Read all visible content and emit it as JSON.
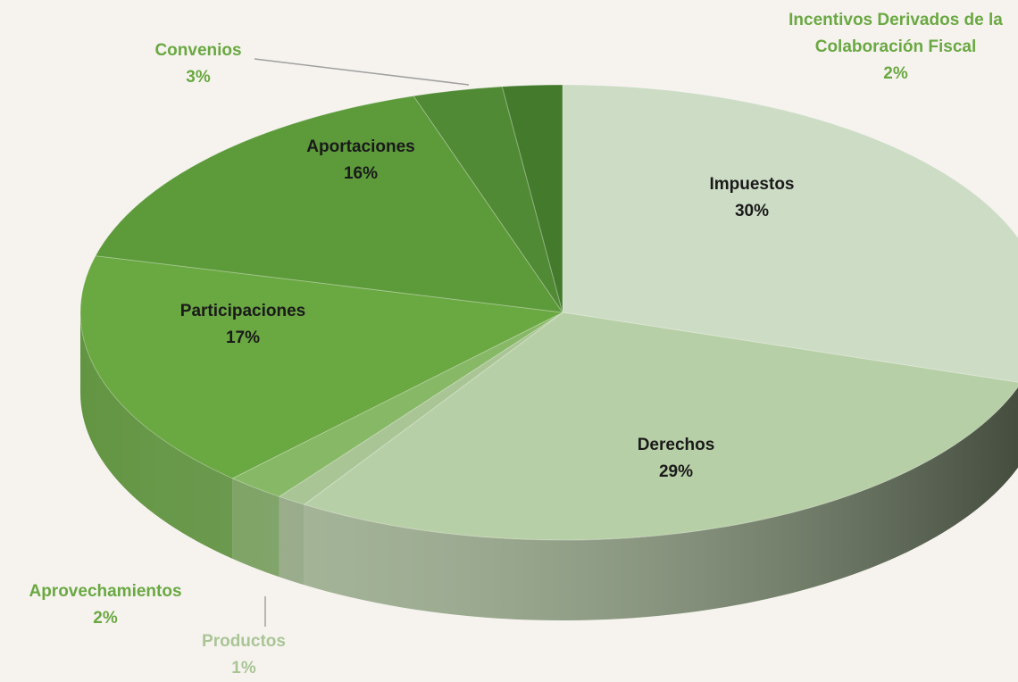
{
  "chart_data": {
    "type": "pie",
    "categories": [
      "Impuestos",
      "Derechos",
      "Productos",
      "Aprovechamientos",
      "Participaciones",
      "Aportaciones",
      "Convenios",
      "Incentivos Derivados de la Colaboración Fiscal"
    ],
    "values": [
      30,
      29,
      1,
      2,
      17,
      16,
      3,
      2
    ],
    "value_labels": [
      "30%",
      "29%",
      "1%",
      "2%",
      "17%",
      "16%",
      "3%",
      "2%"
    ],
    "colors": [
      "#cddcc5",
      "#b7cfa6",
      "#a9c595",
      "#86b865",
      "#6aa842",
      "#5c9a3a",
      "#508a34",
      "#437a2c"
    ]
  }
}
